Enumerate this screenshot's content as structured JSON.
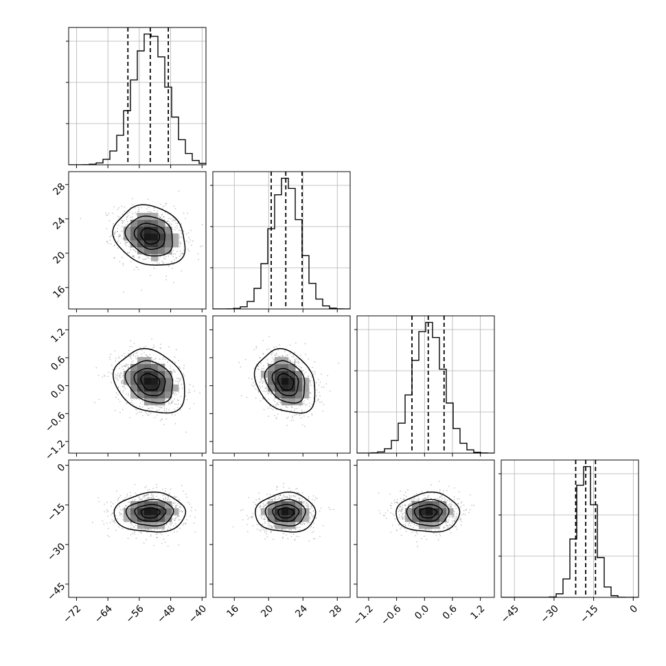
{
  "chart_data": {
    "type": "corner",
    "grid": true,
    "parameters": [
      {
        "index": 0,
        "mean": -53.2,
        "std": 4.4,
        "range": [
          -74,
          -39
        ],
        "quantiles": [
          -58.9,
          -53.2,
          -48.6
        ],
        "ticks": [
          {
            "value": -72,
            "label": "−72"
          },
          {
            "value": -64,
            "label": "−64"
          },
          {
            "value": -56,
            "label": "−56"
          },
          {
            "value": -48,
            "label": "−48"
          },
          {
            "value": -40,
            "label": "−40"
          }
        ]
      },
      {
        "index": 1,
        "mean": 22.0,
        "std": 1.7,
        "range": [
          13.5,
          29.5
        ],
        "quantiles": [
          20.3,
          22.0,
          23.9
        ],
        "ticks": [
          {
            "value": 16,
            "label": "16"
          },
          {
            "value": 20,
            "label": "20"
          },
          {
            "value": 24,
            "label": "24"
          },
          {
            "value": 28,
            "label": "28"
          }
        ]
      },
      {
        "index": 2,
        "mean": 0.08,
        "std": 0.33,
        "range": [
          -1.45,
          1.5
        ],
        "quantiles": [
          -0.27,
          0.08,
          0.42
        ],
        "ticks": [
          {
            "value": -1.2,
            "label": "−1.2"
          },
          {
            "value": -0.6,
            "label": "−0.6"
          },
          {
            "value": 0.0,
            "label": "0.0"
          },
          {
            "value": 0.6,
            "label": "0.6"
          },
          {
            "value": 1.2,
            "label": "1.2"
          }
        ]
      },
      {
        "index": 3,
        "mean": -18.0,
        "std": 3.6,
        "range": [
          -50,
          2
        ],
        "quantiles": [
          -21.8,
          -18.0,
          -14.3
        ],
        "ticks": [
          {
            "value": -45,
            "label": "−45"
          },
          {
            "value": -30,
            "label": "−30"
          },
          {
            "value": -15,
            "label": "−15"
          },
          {
            "value": 0,
            "label": "0"
          }
        ]
      }
    ],
    "correlations": [
      {
        "pair": [
          0,
          1
        ],
        "rho": -0.18
      },
      {
        "pair": [
          0,
          2
        ],
        "rho": -0.22
      },
      {
        "pair": [
          1,
          2
        ],
        "rho": -0.25
      },
      {
        "pair": [
          0,
          3
        ],
        "rho": 0.02
      },
      {
        "pair": [
          1,
          3
        ],
        "rho": 0.0
      },
      {
        "pair": [
          2,
          3
        ],
        "rho": 0.02
      }
    ],
    "contour_levels_sigma": [
      0.5,
      1.0,
      1.5,
      2.0
    ],
    "n_samples": 5000
  }
}
